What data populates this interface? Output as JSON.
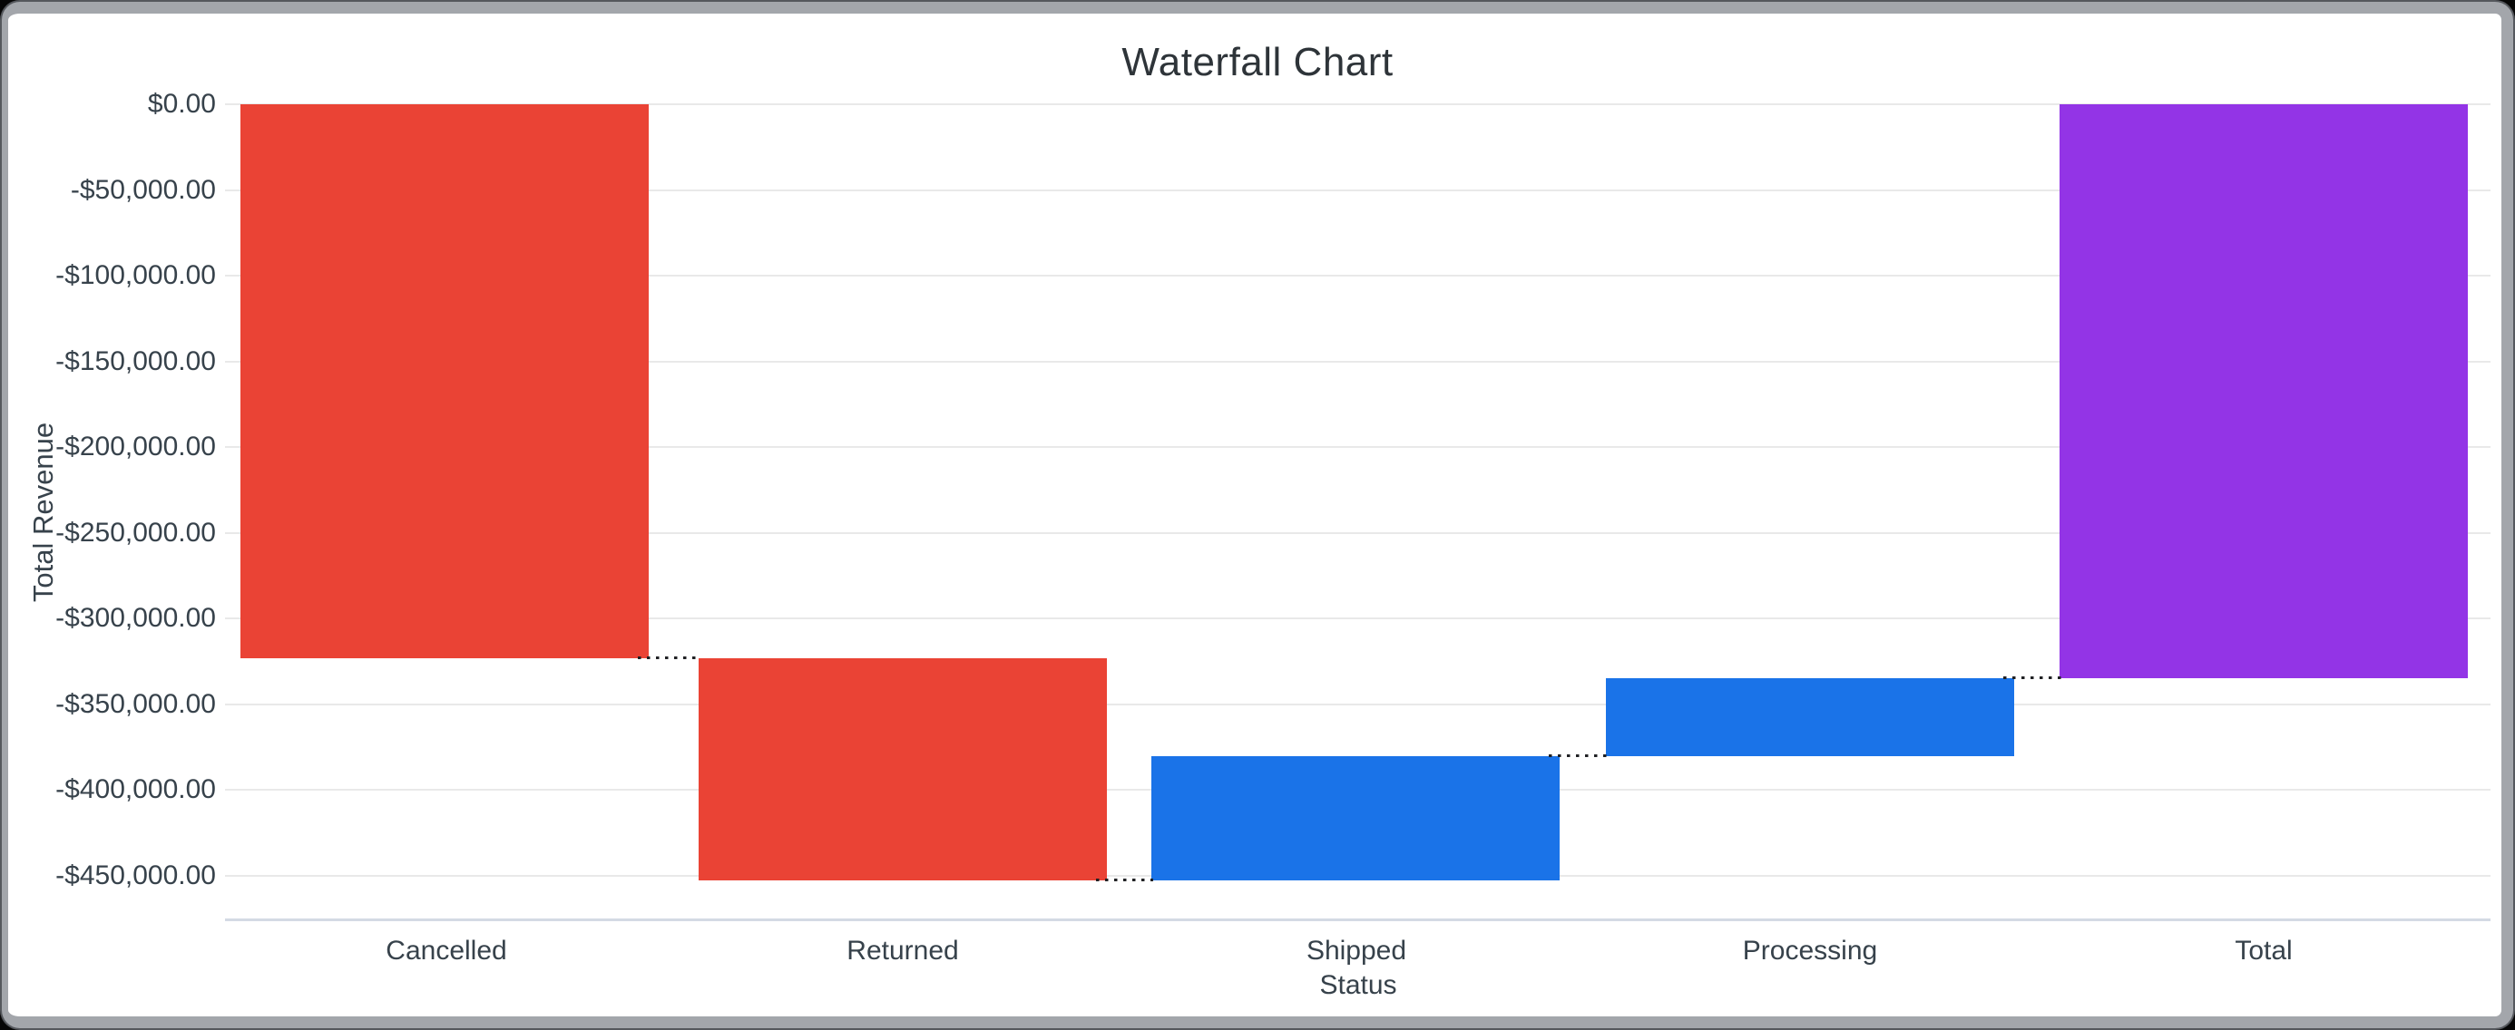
{
  "window": {
    "frame_color": "#a3a6ab",
    "frame_edge_color": "#55585d",
    "card_background": "#ffffff"
  },
  "chart_data": {
    "type": "bar",
    "subtype": "waterfall",
    "title": "Waterfall Chart",
    "xlabel": "Status",
    "ylabel": "Total Revenue",
    "categories": [
      "Cancelled",
      "Returned",
      "Shipped",
      "Processing",
      "Total"
    ],
    "values_estimated_from_gridlines": true,
    "bars": [
      {
        "category": "Cancelled",
        "change": -323100,
        "start": 0,
        "end": -323100,
        "role": "decrease",
        "color": "#EA4335"
      },
      {
        "category": "Returned",
        "change": -129500,
        "start": -323100,
        "end": -452600,
        "role": "decrease",
        "color": "#EA4335"
      },
      {
        "category": "Shipped",
        "change": 72600,
        "start": -452600,
        "end": -380000,
        "role": "increase",
        "color": "#1A73E8"
      },
      {
        "category": "Processing",
        "change": 45500,
        "start": -380000,
        "end": -334500,
        "role": "increase",
        "color": "#1A73E8"
      },
      {
        "category": "Total",
        "change": -334500,
        "start": 0,
        "end": -334500,
        "role": "total",
        "color": "#9334E6"
      }
    ],
    "y_ticks": [
      {
        "value": 0,
        "label": "$0.00"
      },
      {
        "value": -50000,
        "label": "-$50,000.00"
      },
      {
        "value": -100000,
        "label": "-$100,000.00"
      },
      {
        "value": -150000,
        "label": "-$150,000.00"
      },
      {
        "value": -200000,
        "label": "-$200,000.00"
      },
      {
        "value": -250000,
        "label": "-$250,000.00"
      },
      {
        "value": -300000,
        "label": "-$300,000.00"
      },
      {
        "value": -350000,
        "label": "-$350,000.00"
      },
      {
        "value": -400000,
        "label": "-$400,000.00"
      },
      {
        "value": -450000,
        "label": "-$450,000.00"
      }
    ],
    "ylim": [
      -475000,
      0
    ],
    "grid": true,
    "legend": false,
    "connector_style": "dotted",
    "colors": {
      "decrease": "#EA4335",
      "increase": "#1A73E8",
      "total": "#9334E6",
      "gridline": "#e9e9e9",
      "axis_line": "#d4dae4",
      "connector": "#202124",
      "text": "#37424b"
    }
  }
}
